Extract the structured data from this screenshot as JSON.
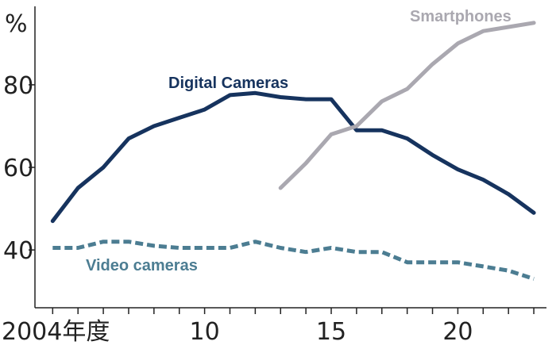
{
  "chart_data": {
    "type": "line",
    "title": "",
    "xlabel": "",
    "ylabel": "",
    "unit_label": "%",
    "x": [
      2004,
      2005,
      2006,
      2007,
      2008,
      2009,
      2010,
      2011,
      2012,
      2013,
      2014,
      2015,
      2016,
      2017,
      2018,
      2019,
      2020,
      2021,
      2022,
      2023
    ],
    "x_tick_values": [
      2004,
      2010,
      2015,
      2020
    ],
    "x_tick_labels": [
      "2004年度",
      "10",
      "15",
      "20"
    ],
    "y_tick_values": [
      40,
      60,
      80
    ],
    "y_tick_labels": [
      "40",
      "60",
      "80"
    ],
    "xlim": [
      2003.3,
      2023.5
    ],
    "ylim": [
      26,
      99
    ],
    "grid": false,
    "legend": "inline labels",
    "series": [
      {
        "name": "Digital Cameras",
        "color": "#16335e",
        "style": "solid",
        "x": [
          2004,
          2005,
          2006,
          2007,
          2008,
          2009,
          2010,
          2011,
          2012,
          2013,
          2014,
          2015,
          2016,
          2017,
          2018,
          2019,
          2020,
          2021,
          2022,
          2023
        ],
        "values": [
          47,
          55,
          60,
          67,
          70,
          72,
          74,
          77.5,
          78,
          77,
          76.5,
          76.5,
          69,
          69,
          67,
          63,
          59.5,
          57,
          53.5,
          49
        ]
      },
      {
        "name": "Smartphones",
        "color": "#aaa8b0",
        "style": "solid",
        "x": [
          2013,
          2014,
          2015,
          2016,
          2017,
          2018,
          2019,
          2020,
          2021,
          2022,
          2023
        ],
        "values": [
          55,
          61,
          68,
          70,
          76,
          79,
          85,
          90,
          93,
          94,
          95
        ]
      },
      {
        "name": "Video cameras",
        "color": "#4c7d92",
        "style": "dashed",
        "x": [
          2004,
          2005,
          2006,
          2007,
          2008,
          2009,
          2010,
          2011,
          2012,
          2013,
          2014,
          2015,
          2016,
          2017,
          2018,
          2019,
          2020,
          2021,
          2022,
          2023
        ],
        "values": [
          40.5,
          40.5,
          42,
          42,
          41,
          40.5,
          40.5,
          40.5,
          42,
          40.5,
          39.5,
          40.5,
          39.5,
          39.5,
          37,
          37,
          37,
          36,
          35,
          33
        ]
      }
    ]
  }
}
